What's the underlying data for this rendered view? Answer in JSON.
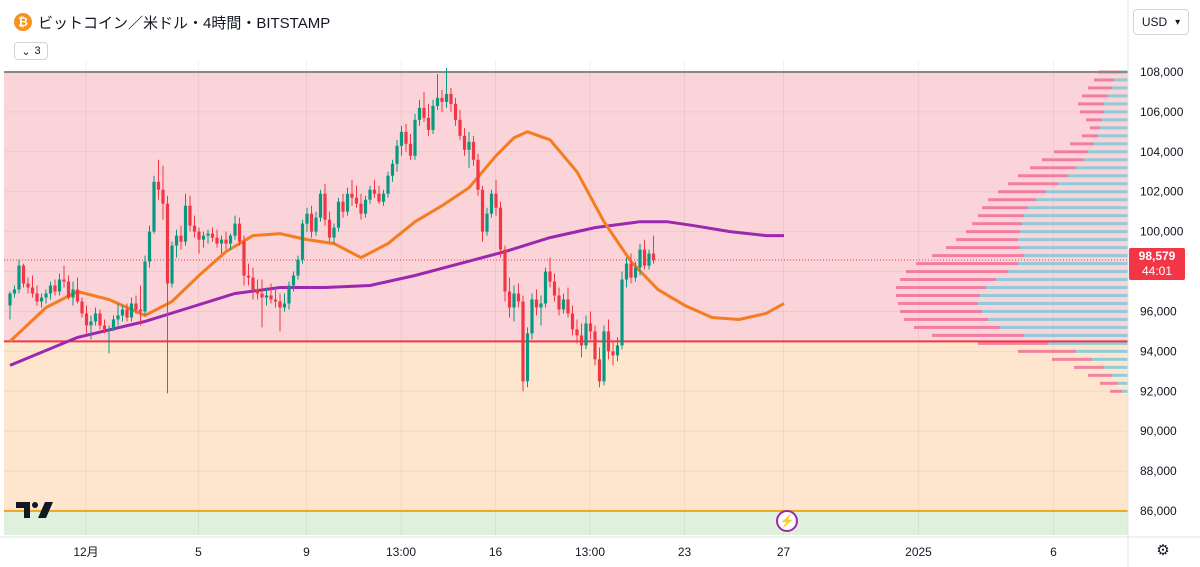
{
  "header": {
    "symbol_icon": "bitcoin-icon",
    "title": "ビットコイン／米ドル・4時間・BITSTAMP",
    "indicator_toggle": "3",
    "currency": "USD"
  },
  "price_label": {
    "price": "98,579",
    "countdown": "44:01"
  },
  "icons": {
    "tradingview_logo": "TV",
    "events_icon": "⚡",
    "settings_icon": "⚙"
  },
  "colors": {
    "up": "#089981",
    "down": "#f23645",
    "ma_fast": "#f57c1f",
    "ma_slow": "#9c27b0",
    "zone_upper": "#fad4d8",
    "zone_mid": "#fde6cd",
    "zone_low": "#dff0dc",
    "line_red": "#f23645",
    "line_orange": "#f5a623",
    "vp_up": "#7ec8d9",
    "vp_down": "#f06292"
  },
  "chart_data": {
    "type": "candlestick",
    "ylim": [
      84800,
      108600
    ],
    "y_ticks": [
      "108,000",
      "106,000",
      "104,000",
      "102,000",
      "100,000",
      "98,000",
      "96,000",
      "94,000",
      "92,000",
      "90,000",
      "88,000",
      "86,000"
    ],
    "y_tick_values": [
      108000,
      106000,
      104000,
      102000,
      100000,
      98000,
      96000,
      94000,
      92000,
      90000,
      88000,
      86000
    ],
    "x_ticks": [
      "12月",
      "5",
      "9",
      "13:00",
      "16",
      "13:00",
      "23",
      "27",
      "2025",
      "6"
    ],
    "x_tick_index": [
      8,
      33,
      57,
      78,
      99,
      120,
      141,
      163,
      193,
      223
    ],
    "current_price": 98579,
    "zones": [
      {
        "from": 94500,
        "to": 108000,
        "color": "zone_upper"
      },
      {
        "from": 86000,
        "to": 94500,
        "color": "zone_mid"
      },
      {
        "from": 84800,
        "to": 86000,
        "color": "zone_low"
      }
    ],
    "hlines": [
      {
        "value": 108000,
        "color": "#888888"
      },
      {
        "value": 94500,
        "color": "line_red"
      },
      {
        "value": 86000,
        "color": "line_orange"
      }
    ],
    "candles": [
      [
        96300,
        97000,
        95600,
        96900
      ],
      [
        96900,
        97300,
        96700,
        97100
      ],
      [
        97100,
        98600,
        96900,
        98300
      ],
      [
        98300,
        98400,
        97200,
        97400
      ],
      [
        97400,
        97700,
        96900,
        97200
      ],
      [
        97200,
        97800,
        96700,
        96900
      ],
      [
        96900,
        97300,
        96300,
        96500
      ],
      [
        96500,
        96900,
        96200,
        96700
      ],
      [
        96700,
        97100,
        96400,
        96900
      ],
      [
        96900,
        97500,
        96600,
        97300
      ],
      [
        97300,
        97600,
        96800,
        97000
      ],
      [
        97000,
        97900,
        96800,
        97600
      ],
      [
        97600,
        98300,
        97200,
        97500
      ],
      [
        97500,
        97800,
        96600,
        96700
      ],
      [
        96700,
        97500,
        96300,
        97100
      ],
      [
        97100,
        97700,
        96400,
        96500
      ],
      [
        96500,
        96700,
        95700,
        95900
      ],
      [
        95900,
        96300,
        94900,
        95300
      ],
      [
        95300,
        95800,
        94600,
        95500
      ],
      [
        95500,
        96200,
        95300,
        95900
      ],
      [
        95900,
        96100,
        95100,
        95300
      ],
      [
        95300,
        95600,
        94900,
        95100
      ],
      [
        95100,
        95300,
        93900,
        95100
      ],
      [
        95100,
        95800,
        95000,
        95600
      ],
      [
        95600,
        96400,
        95300,
        95800
      ],
      [
        95800,
        96300,
        95500,
        96100
      ],
      [
        96100,
        96400,
        95500,
        95700
      ],
      [
        95700,
        96700,
        95500,
        96400
      ],
      [
        96400,
        96800,
        95900,
        96100
      ],
      [
        96100,
        97300,
        95300,
        96000
      ],
      [
        96000,
        98800,
        95800,
        98500
      ],
      [
        98500,
        100300,
        98200,
        100000
      ],
      [
        100000,
        102800,
        99900,
        102500
      ],
      [
        102500,
        103600,
        101600,
        102100
      ],
      [
        102100,
        103300,
        100600,
        101400
      ],
      [
        101400,
        101800,
        91900,
        97400
      ],
      [
        97400,
        99500,
        97200,
        99300
      ],
      [
        99300,
        100100,
        98700,
        99800
      ],
      [
        99800,
        100300,
        99100,
        99500
      ],
      [
        99500,
        101900,
        99300,
        101300
      ],
      [
        101300,
        101800,
        100000,
        100300
      ],
      [
        100300,
        100800,
        99700,
        100000
      ],
      [
        100000,
        100200,
        98900,
        99600
      ],
      [
        99600,
        100000,
        99200,
        99800
      ],
      [
        99800,
        100100,
        99400,
        99900
      ],
      [
        99900,
        100200,
        99500,
        99700
      ],
      [
        99700,
        100100,
        99200,
        99400
      ],
      [
        99400,
        99800,
        98900,
        99600
      ],
      [
        99600,
        100000,
        99100,
        99400
      ],
      [
        99400,
        99900,
        99100,
        99800
      ],
      [
        99800,
        100800,
        99600,
        100400
      ],
      [
        100400,
        100700,
        99300,
        99500
      ],
      [
        99500,
        99800,
        97300,
        97800
      ],
      [
        97800,
        98400,
        97300,
        97700
      ],
      [
        97700,
        98200,
        96600,
        97100
      ],
      [
        97100,
        97600,
        96600,
        96900
      ],
      [
        96900,
        97600,
        95200,
        96700
      ],
      [
        96700,
        97200,
        96300,
        96800
      ],
      [
        96800,
        97400,
        96400,
        96600
      ],
      [
        96600,
        97200,
        96200,
        96500
      ],
      [
        96500,
        96900,
        95000,
        96200
      ],
      [
        96200,
        96900,
        96000,
        96400
      ],
      [
        96400,
        97500,
        96100,
        97300
      ],
      [
        97300,
        98000,
        97000,
        97800
      ],
      [
        97800,
        98800,
        97600,
        98600
      ],
      [
        98600,
        100600,
        98400,
        100400
      ],
      [
        100400,
        101200,
        100000,
        100900
      ],
      [
        100900,
        101300,
        99700,
        100000
      ],
      [
        100000,
        101000,
        99800,
        100700
      ],
      [
        100700,
        102100,
        100500,
        101900
      ],
      [
        101900,
        102400,
        100300,
        100600
      ],
      [
        100600,
        101000,
        99500,
        99700
      ],
      [
        99700,
        100400,
        99400,
        100200
      ],
      [
        100200,
        101700,
        100000,
        101500
      ],
      [
        101500,
        101900,
        100700,
        101000
      ],
      [
        101000,
        102200,
        100800,
        101900
      ],
      [
        101900,
        102600,
        101300,
        101700
      ],
      [
        101700,
        102300,
        101200,
        101400
      ],
      [
        101400,
        101900,
        100600,
        100900
      ],
      [
        100900,
        101800,
        100700,
        101600
      ],
      [
        101600,
        102300,
        101400,
        102100
      ],
      [
        102100,
        102600,
        101700,
        101900
      ],
      [
        101900,
        102300,
        101400,
        101500
      ],
      [
        101500,
        102100,
        101300,
        101900
      ],
      [
        101900,
        103000,
        101700,
        102800
      ],
      [
        102800,
        103600,
        102500,
        103400
      ],
      [
        103400,
        104600,
        103000,
        104300
      ],
      [
        104300,
        105300,
        103800,
        105000
      ],
      [
        105000,
        105400,
        104000,
        104400
      ],
      [
        104400,
        104900,
        103600,
        103800
      ],
      [
        103800,
        105900,
        103600,
        105600
      ],
      [
        105600,
        106600,
        105300,
        106200
      ],
      [
        106200,
        107000,
        105500,
        105700
      ],
      [
        105700,
        106400,
        104800,
        105100
      ],
      [
        105100,
        106600,
        104900,
        106300
      ],
      [
        106300,
        107900,
        106100,
        106700
      ],
      [
        106700,
        107100,
        106000,
        106500
      ],
      [
        106500,
        108200,
        106200,
        106900
      ],
      [
        106900,
        107200,
        106000,
        106400
      ],
      [
        106400,
        106700,
        105300,
        105600
      ],
      [
        105600,
        106100,
        104600,
        104800
      ],
      [
        104800,
        105200,
        103800,
        104100
      ],
      [
        104100,
        105000,
        103200,
        104500
      ],
      [
        104500,
        104800,
        103300,
        103600
      ],
      [
        103600,
        103900,
        101800,
        102100
      ],
      [
        102100,
        102300,
        99500,
        100000
      ],
      [
        100000,
        101200,
        99800,
        100900
      ],
      [
        100900,
        102100,
        100700,
        101900
      ],
      [
        101900,
        102600,
        100800,
        101200
      ],
      [
        101200,
        101500,
        98700,
        99100
      ],
      [
        99100,
        99300,
        96500,
        97000
      ],
      [
        97000,
        97700,
        95700,
        96200
      ],
      [
        96200,
        97300,
        95500,
        96900
      ],
      [
        96900,
        97400,
        96200,
        96500
      ],
      [
        96500,
        96800,
        92000,
        92500
      ],
      [
        92500,
        95200,
        92200,
        94900
      ],
      [
        94900,
        96900,
        94600,
        96600
      ],
      [
        96600,
        97100,
        95800,
        96200
      ],
      [
        96200,
        96800,
        95300,
        96400
      ],
      [
        96400,
        98200,
        96200,
        98000
      ],
      [
        98000,
        98700,
        97200,
        97500
      ],
      [
        97500,
        97900,
        96500,
        96800
      ],
      [
        96800,
        97200,
        95800,
        96100
      ],
      [
        96100,
        96900,
        95900,
        96600
      ],
      [
        96600,
        97200,
        95700,
        95900
      ],
      [
        95900,
        96300,
        94800,
        95100
      ],
      [
        95100,
        95600,
        94400,
        94800
      ],
      [
        94800,
        95400,
        93700,
        94300
      ],
      [
        94300,
        95800,
        94100,
        95400
      ],
      [
        95400,
        96000,
        94600,
        95000
      ],
      [
        95000,
        95300,
        93300,
        93600
      ],
      [
        93600,
        94200,
        92200,
        92500
      ],
      [
        92500,
        95300,
        92300,
        95000
      ],
      [
        95000,
        95600,
        93600,
        94000
      ],
      [
        94000,
        94500,
        93300,
        93800
      ],
      [
        93800,
        94700,
        93500,
        94300
      ],
      [
        94300,
        98000,
        94100,
        97600
      ],
      [
        97600,
        98700,
        97200,
        98400
      ],
      [
        98400,
        98900,
        97400,
        97700
      ],
      [
        97700,
        98500,
        97500,
        98200
      ],
      [
        98200,
        99400,
        97800,
        99100
      ],
      [
        99100,
        99600,
        98100,
        98300
      ],
      [
        98300,
        99100,
        98100,
        98900
      ],
      [
        98900,
        99800,
        98400,
        98579
      ]
    ],
    "ma_fast": [
      [
        0,
        94500
      ],
      [
        8,
        96200
      ],
      [
        15,
        97000
      ],
      [
        22,
        96600
      ],
      [
        30,
        95800
      ],
      [
        36,
        96500
      ],
      [
        42,
        97800
      ],
      [
        48,
        99000
      ],
      [
        54,
        99800
      ],
      [
        60,
        99900
      ],
      [
        66,
        99600
      ],
      [
        72,
        99400
      ],
      [
        78,
        98700
      ],
      [
        84,
        99400
      ],
      [
        90,
        100500
      ],
      [
        96,
        101300
      ],
      [
        102,
        102200
      ],
      [
        108,
        103800
      ],
      [
        112,
        104700
      ],
      [
        115,
        105000
      ],
      [
        120,
        104600
      ],
      [
        126,
        103000
      ],
      [
        132,
        100500
      ],
      [
        138,
        98500
      ],
      [
        144,
        97100
      ],
      [
        150,
        96300
      ],
      [
        156,
        95700
      ],
      [
        162,
        95600
      ],
      [
        168,
        95900
      ],
      [
        172,
        96400
      ]
    ],
    "ma_slow": [
      [
        0,
        93300
      ],
      [
        15,
        94700
      ],
      [
        30,
        95500
      ],
      [
        40,
        96200
      ],
      [
        50,
        96900
      ],
      [
        60,
        97200
      ],
      [
        70,
        97200
      ],
      [
        80,
        97300
      ],
      [
        90,
        97800
      ],
      [
        100,
        98400
      ],
      [
        110,
        99000
      ],
      [
        120,
        99700
      ],
      [
        130,
        100200
      ],
      [
        140,
        100500
      ],
      [
        146,
        100500
      ],
      [
        152,
        100300
      ],
      [
        160,
        100000
      ],
      [
        168,
        99800
      ],
      [
        172,
        99800
      ]
    ],
    "volume_profile": [
      [
        108000,
        8,
        30
      ],
      [
        107600,
        14,
        34
      ],
      [
        107200,
        16,
        40
      ],
      [
        106800,
        20,
        46
      ],
      [
        106400,
        24,
        50
      ],
      [
        106000,
        24,
        48
      ],
      [
        105600,
        26,
        42
      ],
      [
        105200,
        28,
        38
      ],
      [
        104800,
        30,
        46
      ],
      [
        104400,
        34,
        58
      ],
      [
        104000,
        40,
        74
      ],
      [
        103600,
        44,
        86
      ],
      [
        103200,
        52,
        98
      ],
      [
        102800,
        60,
        110
      ],
      [
        102400,
        70,
        120
      ],
      [
        102000,
        82,
        130
      ],
      [
        101600,
        92,
        140
      ],
      [
        101200,
        100,
        146
      ],
      [
        100800,
        104,
        150
      ],
      [
        100400,
        106,
        156
      ],
      [
        100000,
        108,
        162
      ],
      [
        99600,
        110,
        172
      ],
      [
        99200,
        108,
        182
      ],
      [
        98800,
        104,
        196
      ],
      [
        98400,
        110,
        212
      ],
      [
        98000,
        120,
        222
      ],
      [
        97600,
        132,
        228
      ],
      [
        97200,
        142,
        232
      ],
      [
        96800,
        148,
        232
      ],
      [
        96400,
        150,
        230
      ],
      [
        96000,
        146,
        228
      ],
      [
        95600,
        140,
        224
      ],
      [
        95200,
        128,
        214
      ],
      [
        94800,
        104,
        196
      ],
      [
        94400,
        80,
        150
      ],
      [
        94000,
        52,
        110
      ],
      [
        93600,
        36,
        76
      ],
      [
        93200,
        24,
        54
      ],
      [
        92800,
        16,
        40
      ],
      [
        92400,
        10,
        28
      ],
      [
        92000,
        6,
        18
      ]
    ]
  }
}
